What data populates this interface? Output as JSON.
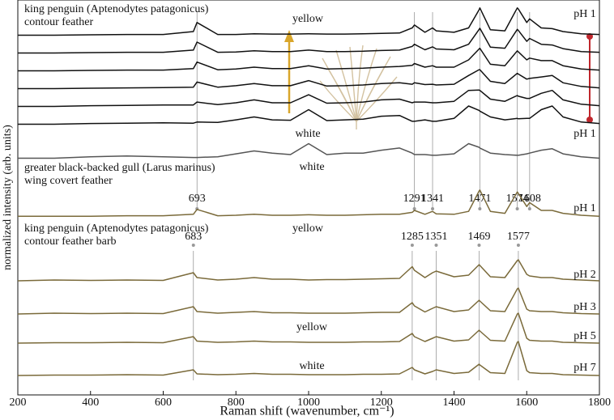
{
  "chart_data": {
    "type": "line",
    "xlabel": "Raman shift (wavenumber, cm⁻¹)",
    "ylabel": "normalized intensity (arb. units)",
    "xlim": [
      200,
      1800
    ],
    "xticks": [
      200,
      400,
      600,
      800,
      1000,
      1200,
      1400,
      1600,
      1800
    ],
    "x": [
      200,
      300,
      400,
      500,
      600,
      683,
      693,
      750,
      800,
      850,
      900,
      950,
      1000,
      1050,
      1100,
      1150,
      1200,
      1250,
      1285,
      1291,
      1320,
      1341,
      1351,
      1400,
      1440,
      1469,
      1471,
      1500,
      1540,
      1574,
      1577,
      1600,
      1608,
      1640,
      1670,
      1700,
      1750,
      1800
    ],
    "series": [
      {
        "color": "#111111",
        "label": "pH 1",
        "label_color": "#c0272d",
        "values": [
          10,
          10,
          11,
          12,
          12,
          20,
          45,
          12,
          12,
          14,
          13,
          13,
          14,
          13,
          13,
          14,
          15,
          16,
          30,
          38,
          18,
          30,
          22,
          18,
          30,
          80,
          85,
          25,
          22,
          85,
          82,
          45,
          55,
          30,
          28,
          20,
          14,
          12
        ]
      },
      {
        "color": "#111111",
        "values": [
          10,
          10,
          11,
          12,
          12,
          18,
          40,
          12,
          13,
          16,
          14,
          14,
          18,
          14,
          14,
          15,
          17,
          18,
          28,
          34,
          19,
          27,
          21,
          19,
          34,
          75,
          78,
          26,
          23,
          75,
          72,
          42,
          50,
          34,
          32,
          22,
          14,
          12
        ]
      },
      {
        "color": "#111111",
        "values": [
          10,
          10,
          11,
          12,
          12,
          16,
          34,
          13,
          15,
          20,
          16,
          16,
          24,
          15,
          16,
          17,
          20,
          22,
          25,
          30,
          20,
          24,
          20,
          20,
          40,
          70,
          72,
          28,
          24,
          65,
          62,
          40,
          45,
          38,
          38,
          24,
          15,
          12
        ]
      },
      {
        "color": "#111111",
        "values": [
          10,
          10,
          11,
          12,
          13,
          14,
          28,
          14,
          18,
          24,
          18,
          18,
          32,
          17,
          18,
          20,
          24,
          26,
          22,
          26,
          21,
          22,
          20,
          22,
          46,
          62,
          62,
          30,
          24,
          52,
          50,
          36,
          38,
          42,
          46,
          26,
          16,
          12
        ]
      },
      {
        "color": "#111111",
        "values": [
          10,
          10,
          12,
          13,
          14,
          14,
          22,
          15,
          20,
          28,
          20,
          20,
          42,
          19,
          20,
          22,
          28,
          30,
          20,
          22,
          22,
          20,
          20,
          24,
          54,
          55,
          54,
          30,
          24,
          40,
          38,
          32,
          32,
          46,
          54,
          28,
          16,
          12
        ]
      },
      {
        "color": "#111111",
        "label": "pH 1",
        "label_color": "#c0272d",
        "values": [
          10,
          10,
          12,
          13,
          14,
          13,
          16,
          15,
          22,
          30,
          22,
          21,
          50,
          20,
          22,
          24,
          32,
          34,
          18,
          18,
          22,
          18,
          18,
          26,
          60,
          48,
          46,
          30,
          22,
          26,
          25,
          26,
          26,
          50,
          60,
          30,
          16,
          12
        ]
      },
      {
        "color": "#555555",
        "values": [
          10,
          10,
          14,
          16,
          14,
          12,
          12,
          14,
          22,
          30,
          24,
          20,
          50,
          20,
          24,
          24,
          32,
          38,
          24,
          20,
          20,
          18,
          18,
          22,
          50,
          40,
          38,
          24,
          20,
          18,
          18,
          22,
          24,
          32,
          36,
          22,
          14,
          10
        ]
      },
      {
        "color": "#7a6a3a",
        "label": "pH 1",
        "label_color": "#c0272d",
        "values": [
          8,
          8,
          8,
          9,
          9,
          12,
          22,
          9,
          10,
          12,
          10,
          10,
          11,
          10,
          10,
          11,
          12,
          12,
          16,
          20,
          12,
          18,
          13,
          12,
          18,
          60,
          62,
          18,
          14,
          58,
          55,
          28,
          36,
          20,
          20,
          14,
          10,
          8
        ]
      },
      {
        "color": "#7a6a3a",
        "label": "pH 2",
        "label_color": "#c0272d",
        "values": [
          10,
          12,
          11,
          12,
          11,
          30,
          18,
          12,
          14,
          18,
          14,
          14,
          12,
          13,
          13,
          14,
          15,
          16,
          45,
          36,
          18,
          30,
          34,
          20,
          24,
          50,
          48,
          20,
          18,
          60,
          62,
          26,
          22,
          18,
          18,
          14,
          12,
          10
        ]
      },
      {
        "color": "#7a6a3a",
        "label": "pH 3",
        "label_color": "#c0272d",
        "values": [
          8,
          10,
          9,
          10,
          9,
          26,
          14,
          10,
          12,
          14,
          11,
          11,
          10,
          10,
          10,
          11,
          12,
          12,
          36,
          28,
          13,
          22,
          26,
          14,
          18,
          42,
          40,
          16,
          14,
          70,
          72,
          20,
          16,
          14,
          14,
          11,
          9,
          8
        ]
      },
      {
        "color": "#7a6a3a",
        "label": "pH 5",
        "label_color": "#c0272d",
        "values": [
          8,
          9,
          9,
          10,
          9,
          24,
          13,
          10,
          11,
          13,
          11,
          11,
          10,
          10,
          10,
          11,
          11,
          12,
          32,
          24,
          12,
          20,
          24,
          13,
          16,
          40,
          38,
          15,
          13,
          80,
          82,
          20,
          15,
          13,
          13,
          10,
          9,
          8
        ]
      },
      {
        "color": "#7a6a3a",
        "label": "pH 7",
        "label_color": "#111111",
        "values": [
          8,
          9,
          9,
          10,
          9,
          22,
          12,
          10,
          11,
          13,
          11,
          11,
          10,
          10,
          10,
          11,
          11,
          12,
          28,
          22,
          12,
          18,
          22,
          13,
          16,
          36,
          34,
          15,
          13,
          90,
          92,
          20,
          15,
          13,
          13,
          10,
          9,
          8
        ]
      }
    ],
    "peak_markers": [
      [
        693,
        1291,
        1341,
        1471,
        1574,
        1608
      ],
      [
        683,
        1285,
        1351,
        1469,
        1577
      ]
    ],
    "annotations": [
      "king penguin (Aptenodytes patagonicus)",
      "contour feather",
      "yellow",
      "white",
      "white",
      "greater black-backed gull (Larus marinus)",
      "wing covert feather",
      "yellow",
      "king penguin (Aptenodytes patagonicus)",
      "contour feather barb",
      "yellow",
      "white"
    ]
  }
}
